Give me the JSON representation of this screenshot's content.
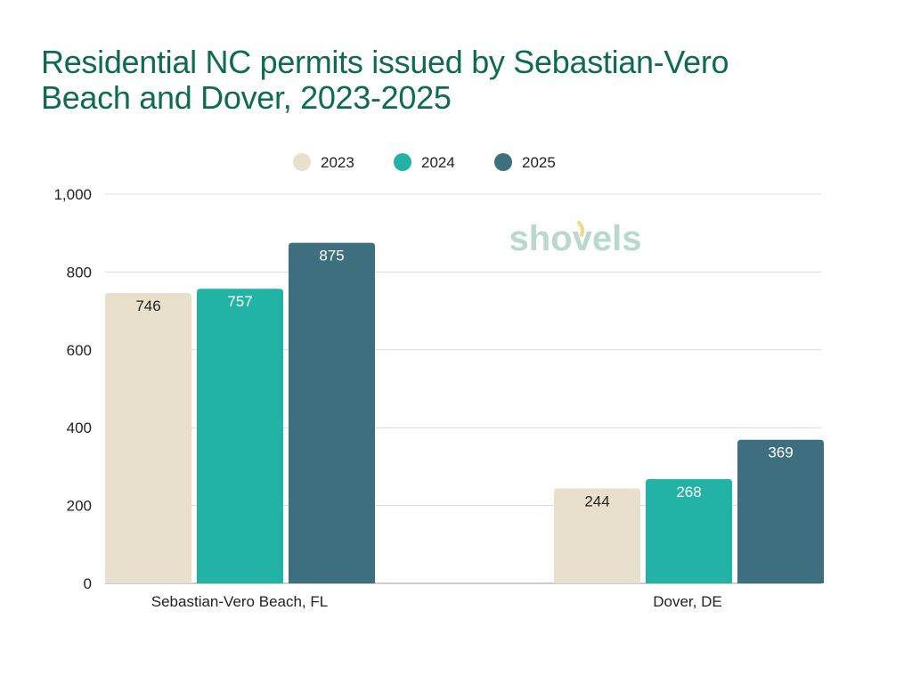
{
  "title_lines": [
    "Residential NC permits issued by Sebastian-Vero",
    "Beach and Dover, 2023-2025"
  ],
  "watermark": "shovels",
  "chart_data": {
    "type": "bar",
    "title": "Residential NC permits issued by Sebastian-Vero Beach and Dover, 2023-2025",
    "categories": [
      "Sebastian-Vero Beach, FL",
      "Dover, DE"
    ],
    "series": [
      {
        "name": "2023",
        "color": "#e8e0cc",
        "label_color": "#222222",
        "values": [
          746,
          244
        ]
      },
      {
        "name": "2024",
        "color": "#22b2a6",
        "label_color": "#ffffff",
        "values": [
          757,
          268
        ]
      },
      {
        "name": "2025",
        "color": "#3d6f7e",
        "label_color": "#ffffff",
        "values": [
          875,
          369
        ]
      }
    ],
    "ylim": [
      0,
      1000
    ],
    "yticks": [
      0,
      200,
      400,
      600,
      800,
      1000
    ],
    "ytick_labels": [
      "0",
      "200",
      "400",
      "600",
      "800",
      "1,000"
    ],
    "grid": true,
    "legend_position": "top-center",
    "xlabel": "",
    "ylabel": ""
  }
}
